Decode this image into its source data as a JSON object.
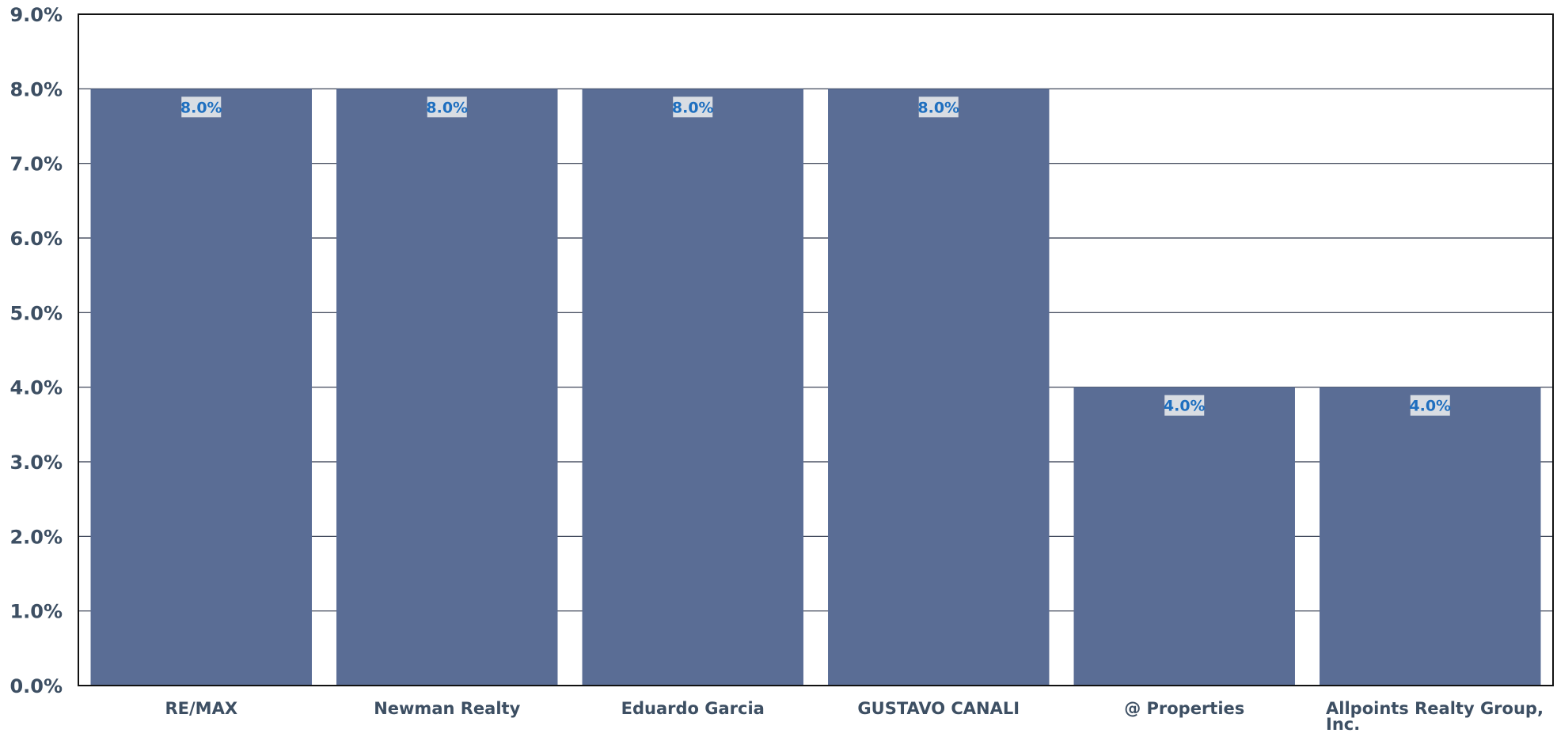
{
  "chart_data": {
    "type": "bar",
    "categories": [
      "RE/MAX",
      "Newman Realty",
      "Eduardo Garcia",
      "GUSTAVO CANALI",
      "@ Properties",
      "Allpoints Realty Group, Inc."
    ],
    "values": [
      8.0,
      8.0,
      8.0,
      8.0,
      4.0,
      4.0
    ],
    "data_labels": [
      "8.0%",
      "8.0%",
      "8.0%",
      "8.0%",
      "4.0%",
      "4.0%"
    ],
    "ylim": [
      0,
      9
    ],
    "yticks": [
      0,
      1,
      2,
      3,
      4,
      5,
      6,
      7,
      8,
      9
    ],
    "ytick_labels": [
      "0.0%",
      "1.0%",
      "2.0%",
      "3.0%",
      "4.0%",
      "5.0%",
      "6.0%",
      "7.0%",
      "8.0%",
      "9.0%"
    ],
    "grid": true,
    "legend": "none",
    "colors": {
      "bar": "#5a6d95",
      "data_label": "#1f6fbf",
      "data_label_background": "#d9dde3",
      "tick_label": "#3d4f63",
      "gridline": "#2a3347"
    }
  }
}
